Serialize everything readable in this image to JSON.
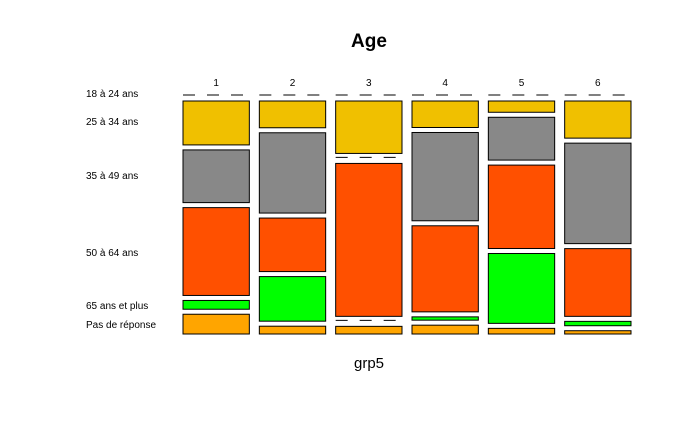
{
  "chart_data": {
    "type": "mosaic",
    "title": "Age",
    "xlabel": "grp5",
    "categories": [
      "1",
      "2",
      "3",
      "4",
      "5",
      "6"
    ],
    "category_widths": [
      1,
      1,
      1,
      1,
      1,
      1
    ],
    "rows": [
      {
        "label": "18 à 24 ans",
        "color": "#F0C000"
      },
      {
        "label": "25 à 34 ans",
        "color": "#F0C000"
      },
      {
        "label": "35 à 49 ans",
        "color": "#888888"
      },
      {
        "label": "50 à 64 ans",
        "color": "#FF5000"
      },
      {
        "label": "65 ans et plus",
        "color": "#00FF00"
      },
      {
        "label": "Pas de réponse",
        "color": "#FFA500"
      }
    ],
    "values": [
      [
        0.0,
        0.2,
        0.24,
        0.4,
        0.04,
        0.09
      ],
      [
        0.0,
        0.12,
        0.36,
        0.24,
        0.2,
        0.035
      ],
      [
        0.0,
        0.24,
        0.0,
        0.7,
        0.0,
        0.035
      ],
      [
        0.0,
        0.12,
        0.4,
        0.39,
        0.015,
        0.04
      ],
      [
        0.0,
        0.05,
        0.19,
        0.37,
        0.31,
        0.025
      ],
      [
        0.0,
        0.17,
        0.46,
        0.31,
        0.02,
        0.015
      ]
    ]
  }
}
